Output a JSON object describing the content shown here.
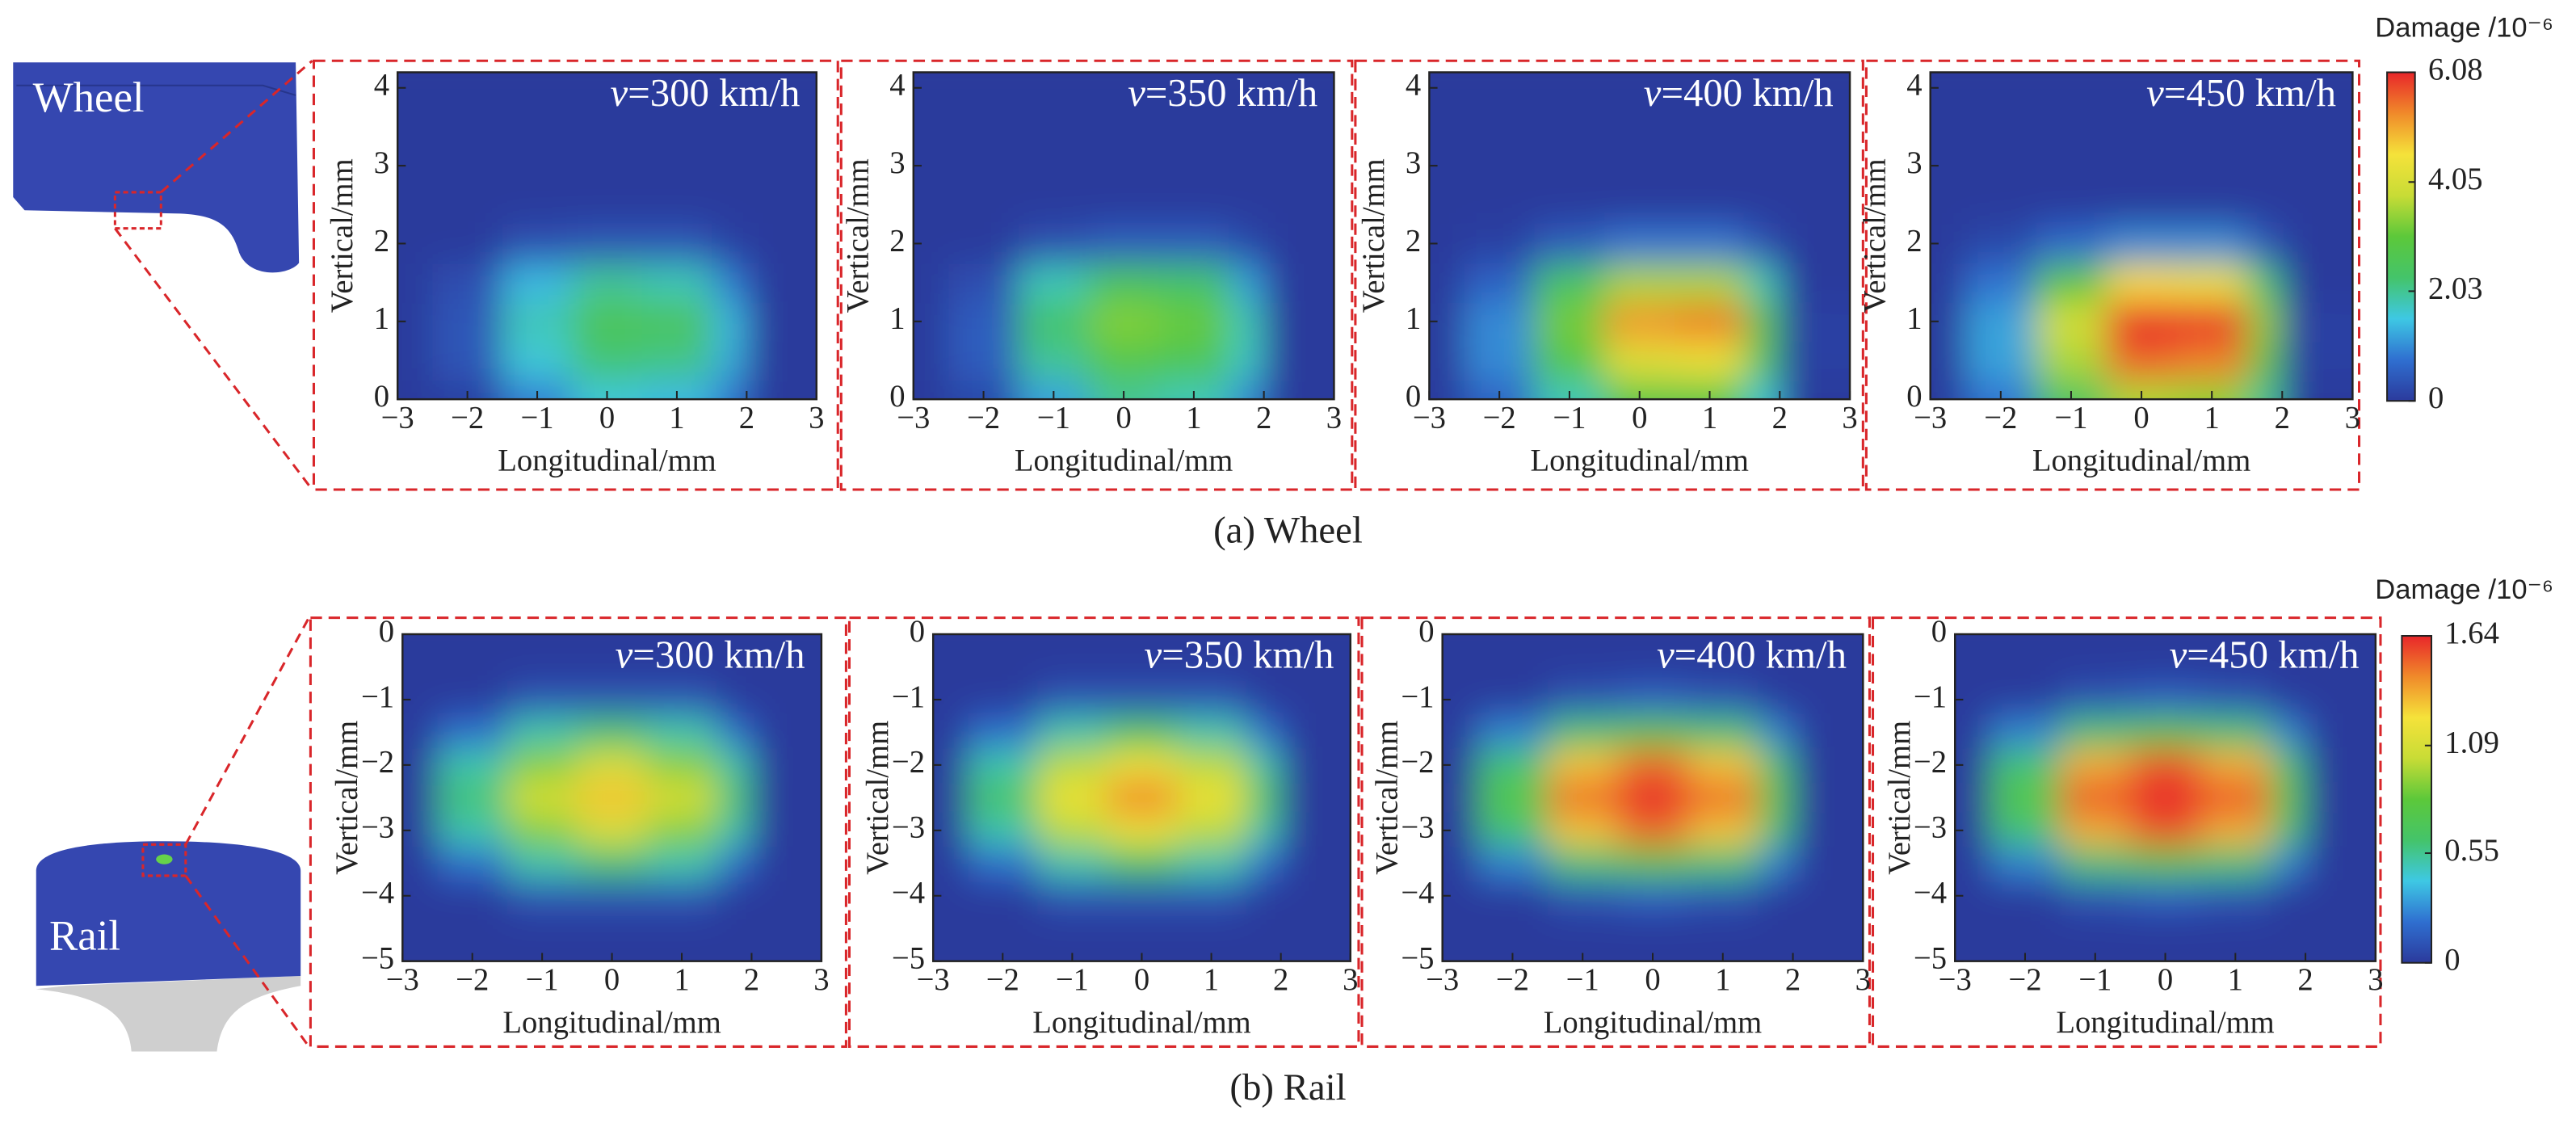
{
  "panels": [
    {
      "label": "Wheel",
      "caption": "(a) Wheel",
      "colorbar": {
        "title": "Damage /10⁻⁶",
        "zlim": [
          0,
          6.08
        ],
        "ticks": [
          0,
          2.03,
          4.05,
          6.08
        ]
      }
    },
    {
      "label": "Rail",
      "caption": "(b) Rail",
      "colorbar": {
        "title": "Damage /10⁻⁶",
        "zlim": [
          0,
          1.64
        ],
        "ticks": [
          0,
          0.55,
          1.09,
          1.64
        ]
      }
    }
  ],
  "colormap": [
    "#2b3a9c",
    "#2f6fd0",
    "#3ec8e4",
    "#44c46a",
    "#5cc83a",
    "#c8dc36",
    "#f5e23a",
    "#f08a2a",
    "#e8262a"
  ],
  "chart_data": [
    {
      "type": "contour",
      "title": "v=300 km/h",
      "x_label": "Longitudinal/mm",
      "y_label": "Vertical/mm",
      "xlim": [
        -3,
        3
      ],
      "xticks": [
        {
          "value": -3,
          "label": "−3"
        },
        {
          "value": -2,
          "label": "−2"
        },
        {
          "value": -1,
          "label": "−1"
        },
        0,
        1,
        2,
        3
      ],
      "ylim": [
        0,
        4.2
      ],
      "yticks": [
        0,
        1,
        2,
        3,
        4
      ],
      "x": [
        -3,
        -2,
        -1,
        0,
        1,
        2,
        3
      ],
      "y": [
        0,
        0.5,
        1,
        1.5,
        2,
        2.5,
        3,
        3.5,
        4
      ],
      "z": [
        [
          0,
          0.1,
          0.9,
          1.6,
          1.4,
          0.8,
          0
        ],
        [
          0,
          0.4,
          1.6,
          2.2,
          2.1,
          1.3,
          0
        ],
        [
          0,
          0.4,
          1.8,
          2.6,
          2.5,
          1.4,
          0
        ],
        [
          0,
          0.3,
          1.4,
          2.0,
          1.8,
          0.9,
          0
        ],
        [
          0,
          0,
          0.3,
          0.4,
          0.4,
          0.1,
          0
        ],
        [
          0,
          0,
          0,
          0,
          0,
          0,
          0
        ],
        [
          0,
          0,
          0,
          0,
          0,
          0,
          0
        ],
        [
          0,
          0,
          0,
          0,
          0,
          0,
          0
        ],
        [
          0,
          0,
          0,
          0,
          0,
          0,
          0
        ]
      ]
    },
    {
      "type": "contour",
      "title": "v=350 km/h",
      "x_label": "Longitudinal/mm",
      "y_label": "Vertical/mm",
      "xlim": [
        -3,
        3
      ],
      "xticks": [
        {
          "value": -3,
          "label": "−3"
        },
        {
          "value": -2,
          "label": "−2"
        },
        {
          "value": -1,
          "label": "−1"
        },
        0,
        1,
        2,
        3
      ],
      "ylim": [
        0,
        4.2
      ],
      "yticks": [
        0,
        1,
        2,
        3,
        4
      ],
      "x": [
        -3,
        -2,
        -1,
        0,
        1,
        2,
        3
      ],
      "y": [
        0,
        0.5,
        1,
        1.5,
        2,
        2.5,
        3,
        3.5,
        4
      ],
      "z": [
        [
          0,
          0.2,
          1.2,
          2.0,
          1.8,
          1.0,
          0
        ],
        [
          0,
          0.5,
          2.0,
          2.8,
          2.6,
          1.7,
          0
        ],
        [
          0,
          0.5,
          2.3,
          3.3,
          3.1,
          1.8,
          0
        ],
        [
          0,
          0.3,
          1.8,
          2.5,
          2.3,
          1.2,
          0
        ],
        [
          0,
          0,
          0.3,
          0.5,
          0.5,
          0.2,
          0
        ],
        [
          0,
          0,
          0,
          0,
          0,
          0,
          0
        ],
        [
          0,
          0,
          0,
          0,
          0,
          0,
          0
        ],
        [
          0,
          0,
          0,
          0,
          0,
          0,
          0
        ],
        [
          0,
          0,
          0,
          0,
          0,
          0,
          0
        ]
      ]
    },
    {
      "type": "contour",
      "title": "v=400 km/h",
      "x_label": "Longitudinal/mm",
      "y_label": "Vertical/mm",
      "xlim": [
        -3,
        3
      ],
      "xticks": [
        {
          "value": -3,
          "label": "−3"
        },
        {
          "value": -2,
          "label": "−2"
        },
        {
          "value": -1,
          "label": "−1"
        },
        0,
        1,
        2,
        3
      ],
      "ylim": [
        0,
        4.2
      ],
      "yticks": [
        0,
        1,
        2,
        3,
        4
      ],
      "x": [
        -3,
        -2,
        -1,
        0,
        1,
        2,
        3
      ],
      "y": [
        0,
        0.5,
        1,
        1.5,
        2,
        2.5,
        3,
        3.5,
        4
      ],
      "z": [
        [
          0,
          0.6,
          1.8,
          2.8,
          2.8,
          1.6,
          0
        ],
        [
          0,
          1.0,
          2.8,
          4.2,
          4.4,
          2.4,
          0.1
        ],
        [
          0,
          1.0,
          3.2,
          5.2,
          5.4,
          2.8,
          0.1
        ],
        [
          0,
          0.6,
          2.4,
          3.6,
          3.6,
          1.8,
          0
        ],
        [
          0,
          0.1,
          0.5,
          0.8,
          0.8,
          0.3,
          0
        ],
        [
          0,
          0,
          0,
          0,
          0,
          0,
          0
        ],
        [
          0,
          0,
          0,
          0,
          0,
          0,
          0
        ],
        [
          0,
          0,
          0,
          0,
          0,
          0,
          0
        ],
        [
          0,
          0,
          0,
          0,
          0,
          0,
          0
        ]
      ]
    },
    {
      "type": "contour",
      "title": "v=450 km/h",
      "x_label": "Longitudinal/mm",
      "y_label": "Vertical/mm",
      "xlim": [
        -3,
        3
      ],
      "xticks": [
        {
          "value": -3,
          "label": "−3"
        },
        {
          "value": -2,
          "label": "−2"
        },
        {
          "value": -1,
          "label": "−1"
        },
        0,
        1,
        2,
        3
      ],
      "ylim": [
        0,
        4.2
      ],
      "yticks": [
        0,
        1,
        2,
        3,
        4
      ],
      "x": [
        -3,
        -2,
        -1,
        0,
        1,
        2,
        3
      ],
      "y": [
        0,
        0.5,
        1,
        1.5,
        2,
        2.5,
        3,
        3.5,
        4
      ],
      "z": [
        [
          0,
          0.8,
          2.4,
          3.6,
          3.4,
          2.0,
          0
        ],
        [
          0,
          1.2,
          3.6,
          5.6,
          5.4,
          3.0,
          0.1
        ],
        [
          0,
          1.2,
          4.0,
          6.08,
          6.0,
          3.4,
          0.1
        ],
        [
          0,
          0.8,
          3.0,
          4.6,
          4.4,
          2.2,
          0
        ],
        [
          0,
          0.2,
          0.7,
          1.0,
          1.0,
          0.4,
          0
        ],
        [
          0,
          0,
          0,
          0,
          0,
          0,
          0
        ],
        [
          0,
          0,
          0,
          0,
          0,
          0,
          0
        ],
        [
          0,
          0,
          0,
          0,
          0,
          0,
          0
        ],
        [
          0,
          0,
          0,
          0,
          0,
          0,
          0
        ]
      ]
    },
    {
      "type": "contour",
      "title": "v=300 km/h",
      "x_label": "Longitudinal/mm",
      "y_label": "Vertical/mm",
      "xlim": [
        -3,
        3
      ],
      "xticks": [
        {
          "value": -3,
          "label": "−3"
        },
        {
          "value": -2,
          "label": "−2"
        },
        {
          "value": -1,
          "label": "−1"
        },
        0,
        1,
        2,
        3
      ],
      "ylim": [
        -5,
        0
      ],
      "yticks": [
        0,
        {
          "value": -1,
          "label": "−1"
        },
        {
          "value": -2,
          "label": "−2"
        },
        {
          "value": -3,
          "label": "−3"
        },
        {
          "value": -4,
          "label": "−4"
        },
        {
          "value": -5,
          "label": "−5"
        }
      ],
      "x": [
        -3,
        -2,
        -1,
        0,
        1,
        2,
        3
      ],
      "y": [
        0,
        -0.5,
        -1,
        -1.5,
        -2,
        -2.5,
        -3,
        -3.5,
        -4,
        -4.5,
        -5
      ],
      "z": [
        [
          0,
          0,
          0,
          0,
          0,
          0,
          0
        ],
        [
          0,
          0,
          0,
          0,
          0,
          0,
          0
        ],
        [
          0,
          0,
          0.1,
          0.1,
          0.1,
          0,
          0
        ],
        [
          0,
          0.2,
          0.5,
          0.6,
          0.5,
          0.2,
          0
        ],
        [
          0,
          0.5,
          0.9,
          1.1,
          0.9,
          0.5,
          0
        ],
        [
          0,
          0.6,
          1.1,
          1.3,
          1.1,
          0.6,
          0
        ],
        [
          0,
          0.5,
          0.9,
          1.1,
          0.9,
          0.5,
          0
        ],
        [
          0,
          0.2,
          0.5,
          0.6,
          0.5,
          0.2,
          0
        ],
        [
          0,
          0,
          0.1,
          0.1,
          0.1,
          0,
          0
        ],
        [
          0,
          0,
          0,
          0,
          0,
          0,
          0
        ],
        [
          0,
          0,
          0,
          0,
          0,
          0,
          0
        ]
      ]
    },
    {
      "type": "contour",
      "title": "v=350 km/h",
      "x_label": "Longitudinal/mm",
      "y_label": "Vertical/mm",
      "xlim": [
        -3,
        3
      ],
      "xticks": [
        {
          "value": -3,
          "label": "−3"
        },
        {
          "value": -2,
          "label": "−2"
        },
        {
          "value": -1,
          "label": "−1"
        },
        0,
        1,
        2,
        3
      ],
      "ylim": [
        -5,
        0
      ],
      "yticks": [
        0,
        {
          "value": -1,
          "label": "−1"
        },
        {
          "value": -2,
          "label": "−2"
        },
        {
          "value": -3,
          "label": "−3"
        },
        {
          "value": -4,
          "label": "−4"
        },
        {
          "value": -5,
          "label": "−5"
        }
      ],
      "x": [
        -3,
        -2,
        -1,
        0,
        1,
        2,
        3
      ],
      "y": [
        0,
        -0.5,
        -1,
        -1.5,
        -2,
        -2.5,
        -3,
        -3.5,
        -4,
        -4.5,
        -5
      ],
      "z": [
        [
          0,
          0,
          0,
          0,
          0,
          0,
          0
        ],
        [
          0,
          0,
          0,
          0,
          0,
          0,
          0
        ],
        [
          0,
          0,
          0.1,
          0.1,
          0.1,
          0,
          0
        ],
        [
          0,
          0.2,
          0.5,
          0.65,
          0.5,
          0.2,
          0
        ],
        [
          0,
          0.5,
          1.0,
          1.2,
          1.0,
          0.5,
          0
        ],
        [
          0,
          0.65,
          1.2,
          1.45,
          1.2,
          0.65,
          0
        ],
        [
          0,
          0.5,
          1.0,
          1.2,
          1.0,
          0.5,
          0
        ],
        [
          0,
          0.2,
          0.5,
          0.65,
          0.5,
          0.2,
          0
        ],
        [
          0,
          0,
          0.1,
          0.1,
          0.1,
          0,
          0
        ],
        [
          0,
          0,
          0,
          0,
          0,
          0,
          0
        ],
        [
          0,
          0,
          0,
          0,
          0,
          0,
          0
        ]
      ]
    },
    {
      "type": "contour",
      "title": "v=400 km/h",
      "x_label": "Longitudinal/mm",
      "y_label": "Vertical/mm",
      "xlim": [
        -3,
        3
      ],
      "xticks": [
        {
          "value": -3,
          "label": "−3"
        },
        {
          "value": -2,
          "label": "−2"
        },
        {
          "value": -1,
          "label": "−1"
        },
        0,
        1,
        2,
        3
      ],
      "ylim": [
        -5,
        0
      ],
      "yticks": [
        0,
        {
          "value": -1,
          "label": "−1"
        },
        {
          "value": -2,
          "label": "−2"
        },
        {
          "value": -3,
          "label": "−3"
        },
        {
          "value": -4,
          "label": "−4"
        },
        {
          "value": -5,
          "label": "−5"
        }
      ],
      "x": [
        -3,
        -2,
        -1,
        0,
        1,
        2,
        3
      ],
      "y": [
        0,
        -0.5,
        -1,
        -1.5,
        -2,
        -2.5,
        -3,
        -3.5,
        -4,
        -4.5,
        -5
      ],
      "z": [
        [
          0,
          0,
          0,
          0,
          0,
          0,
          0
        ],
        [
          0,
          0,
          0,
          0,
          0,
          0,
          0
        ],
        [
          0,
          0,
          0.1,
          0.15,
          0.1,
          0,
          0
        ],
        [
          0,
          0.25,
          0.6,
          0.75,
          0.6,
          0.25,
          0
        ],
        [
          0,
          0.6,
          1.3,
          1.5,
          1.3,
          0.6,
          0
        ],
        [
          0,
          0.75,
          1.5,
          1.64,
          1.5,
          0.75,
          0
        ],
        [
          0,
          0.6,
          1.3,
          1.5,
          1.3,
          0.6,
          0
        ],
        [
          0,
          0.25,
          0.6,
          0.75,
          0.6,
          0.25,
          0
        ],
        [
          0,
          0,
          0.1,
          0.15,
          0.1,
          0,
          0
        ],
        [
          0,
          0,
          0,
          0,
          0,
          0,
          0
        ],
        [
          0,
          0,
          0,
          0,
          0,
          0,
          0
        ]
      ]
    },
    {
      "type": "contour",
      "title": "v=450 km/h",
      "x_label": "Longitudinal/mm",
      "y_label": "Vertical/mm",
      "xlim": [
        -3,
        3
      ],
      "xticks": [
        {
          "value": -3,
          "label": "−3"
        },
        {
          "value": -2,
          "label": "−2"
        },
        {
          "value": -1,
          "label": "−1"
        },
        0,
        1,
        2,
        3
      ],
      "ylim": [
        -5,
        0
      ],
      "yticks": [
        0,
        {
          "value": -1,
          "label": "−1"
        },
        {
          "value": -2,
          "label": "−2"
        },
        {
          "value": -3,
          "label": "−3"
        },
        {
          "value": -4,
          "label": "−4"
        },
        {
          "value": -5,
          "label": "−5"
        }
      ],
      "x": [
        -3,
        -2,
        -1,
        0,
        1,
        2,
        3
      ],
      "y": [
        0,
        -0.5,
        -1,
        -1.5,
        -2,
        -2.5,
        -3,
        -3.5,
        -4,
        -4.5,
        -5
      ],
      "z": [
        [
          0,
          0,
          0,
          0,
          0,
          0,
          0
        ],
        [
          0,
          0,
          0,
          0,
          0,
          0,
          0
        ],
        [
          0,
          0,
          0.1,
          0.15,
          0.1,
          0,
          0
        ],
        [
          0,
          0.25,
          0.6,
          0.75,
          0.6,
          0.25,
          0
        ],
        [
          0,
          0.6,
          1.35,
          1.55,
          1.35,
          0.6,
          0
        ],
        [
          0,
          0.75,
          1.55,
          1.64,
          1.55,
          0.75,
          0
        ],
        [
          0,
          0.6,
          1.35,
          1.55,
          1.35,
          0.6,
          0
        ],
        [
          0,
          0.25,
          0.6,
          0.75,
          0.6,
          0.25,
          0
        ],
        [
          0,
          0,
          0.1,
          0.15,
          0.1,
          0,
          0
        ],
        [
          0,
          0,
          0,
          0,
          0,
          0,
          0
        ],
        [
          0,
          0,
          0,
          0,
          0,
          0,
          0
        ]
      ]
    }
  ]
}
